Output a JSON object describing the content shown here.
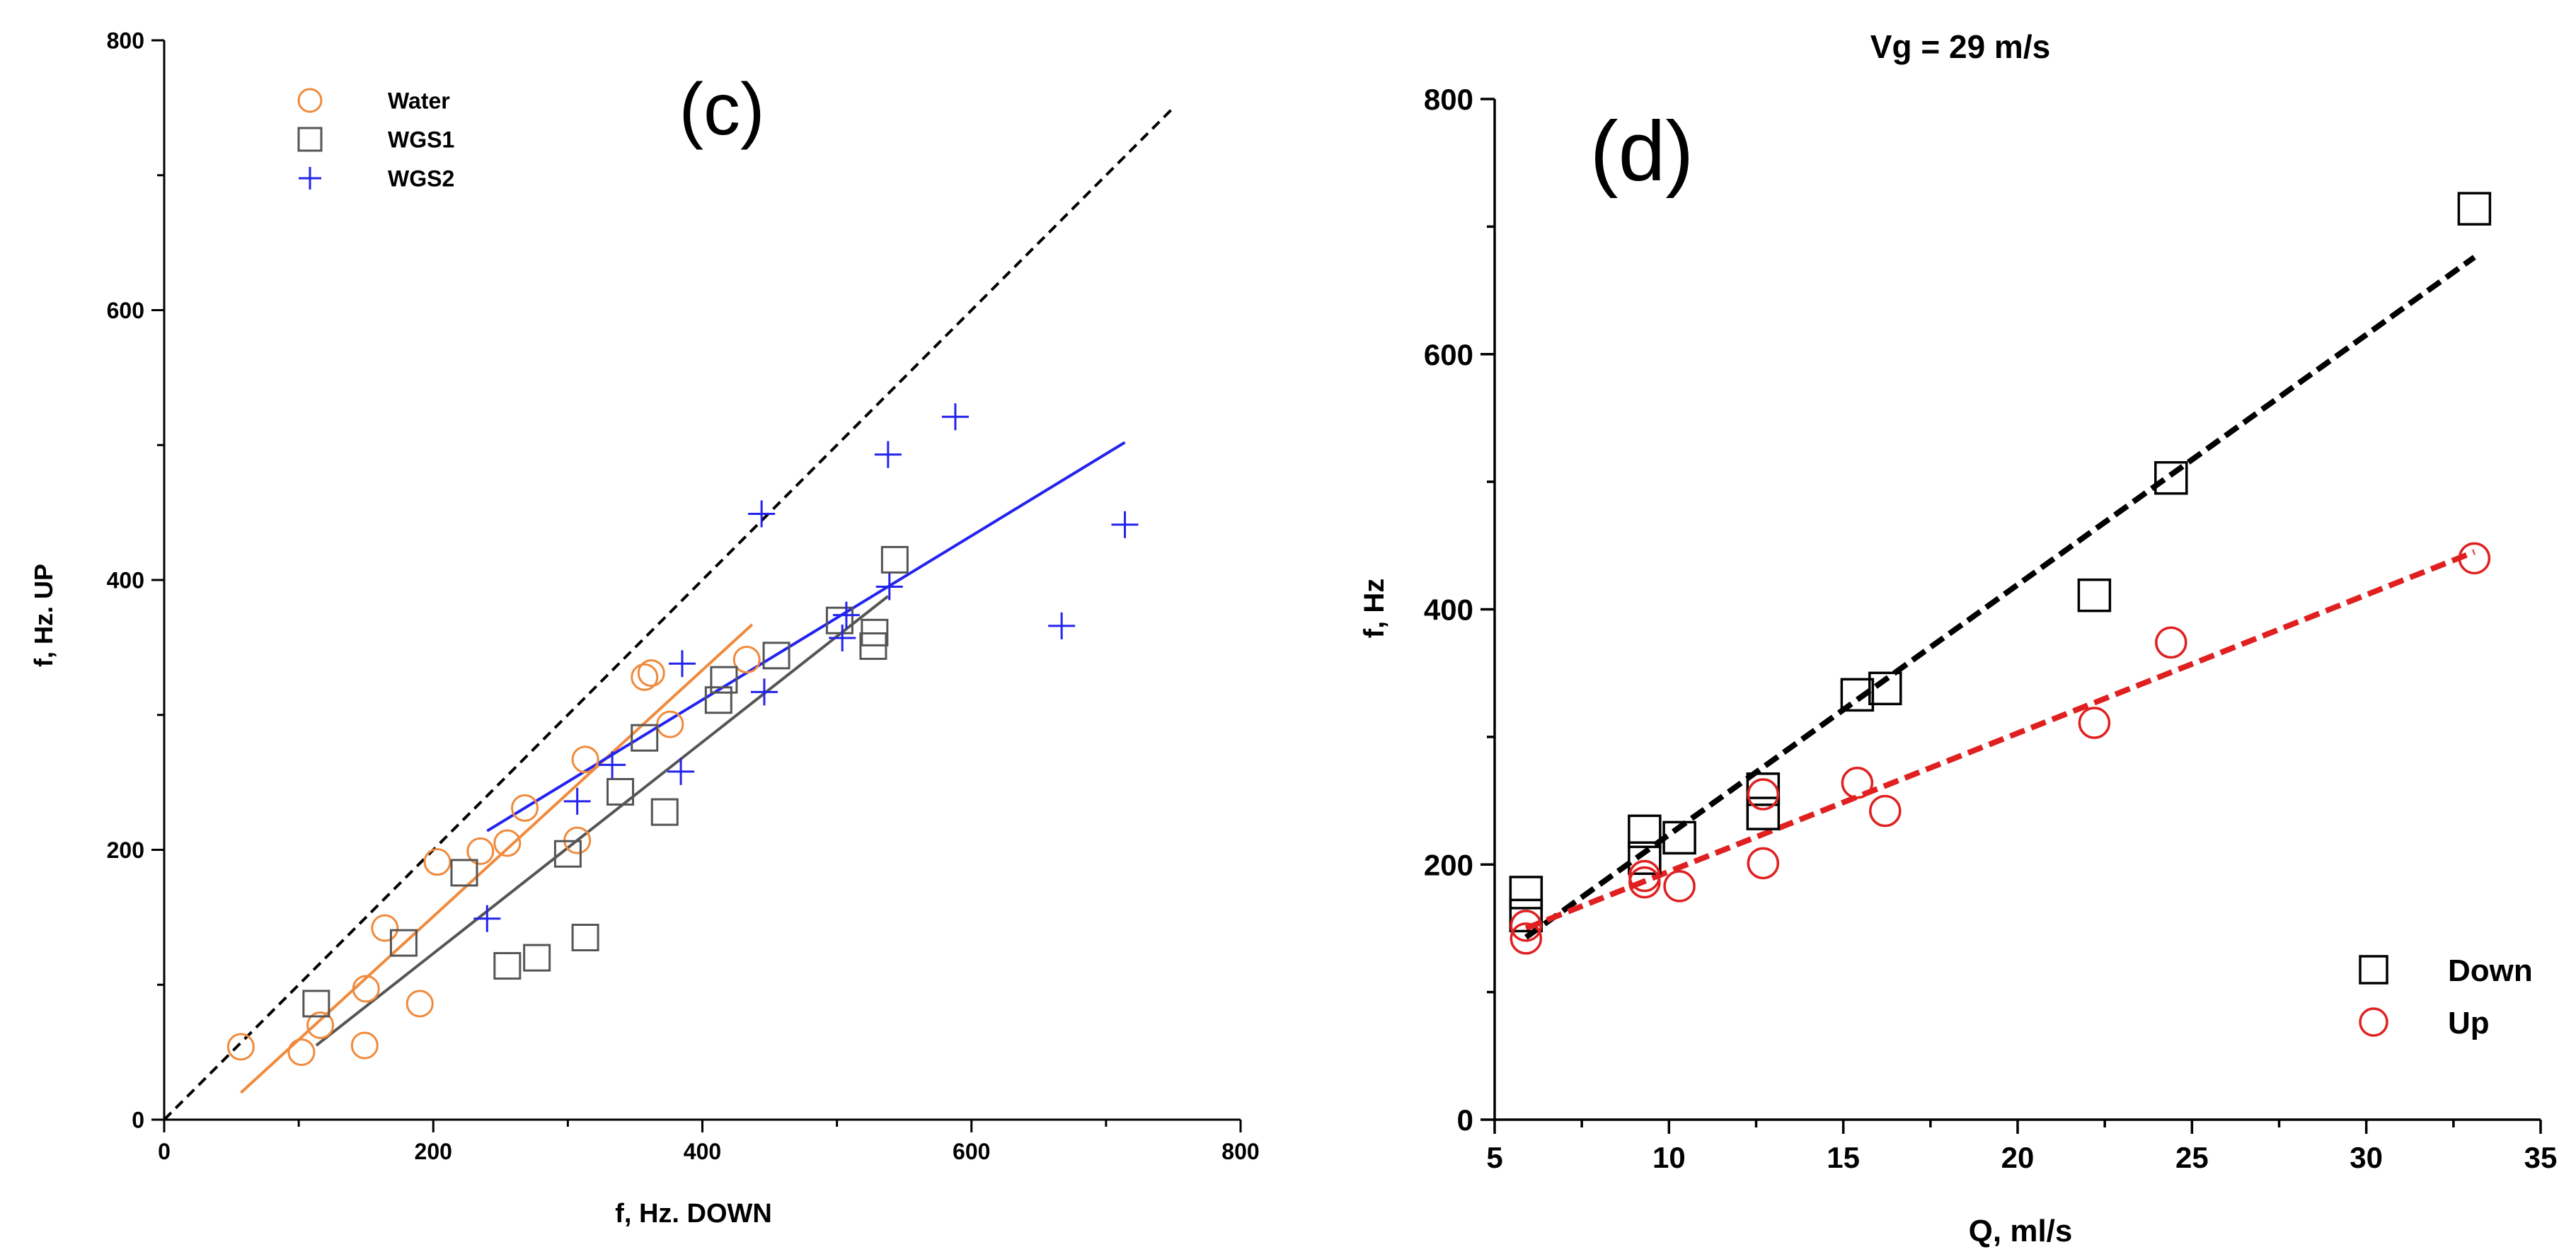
{
  "chart_data": [
    {
      "panel": "(c)",
      "type": "scatter",
      "title": "",
      "xlabel": "f, Hz. DOWN",
      "ylabel": "f, Hz. UP",
      "xlim": [
        0,
        800
      ],
      "ylim": [
        0,
        800
      ],
      "xticks": [
        0,
        200,
        400,
        600,
        800
      ],
      "yticks": [
        0,
        200,
        400,
        600,
        800
      ],
      "legend_position": "top-left",
      "series": [
        {
          "name": "Water",
          "marker": "circle",
          "color": "#f08a3c",
          "x": [
            57,
            102,
            116,
            149,
            150,
            164,
            190,
            203,
            235,
            255,
            268,
            307,
            313,
            357,
            362,
            376,
            433
          ],
          "y": [
            54,
            50,
            70,
            55,
            97,
            142,
            86,
            191,
            199,
            205,
            231,
            207,
            267,
            328,
            331,
            293,
            341
          ],
          "fit": {
            "x": [
              57,
              437
            ],
            "y": [
              20,
              367
            ]
          }
        },
        {
          "name": "WGS1",
          "marker": "square",
          "color": "#555555",
          "x": [
            113,
            178,
            223,
            255,
            277,
            300,
            313,
            339,
            357,
            372,
            412,
            416,
            455,
            502,
            527,
            528,
            543
          ],
          "y": [
            86,
            131,
            183,
            114,
            120,
            197,
            135,
            243,
            283,
            228,
            311,
            326,
            344,
            370,
            351,
            361,
            415
          ],
          "fit": {
            "x": [
              113,
              538
            ],
            "y": [
              55,
              388
            ]
          }
        },
        {
          "name": "WGS2",
          "marker": "plus",
          "color": "#2323ee",
          "x": [
            240,
            307,
            333,
            384,
            385,
            444,
            446,
            504,
            507,
            538,
            539,
            588,
            667,
            714
          ],
          "y": [
            149,
            236,
            263,
            258,
            338,
            449,
            317,
            357,
            374,
            493,
            395,
            521,
            366,
            441
          ],
          "fit": {
            "x": [
              240,
              714
            ],
            "y": [
              214,
              502
            ]
          }
        }
      ],
      "reference_line": {
        "label": "y = x",
        "style": "dashed",
        "x": [
          0,
          750
        ],
        "y": [
          0,
          750
        ]
      }
    },
    {
      "panel": "(d)",
      "type": "scatter",
      "title": "Vg = 29 m/s",
      "xlabel": "Q, ml/s",
      "ylabel": "f, Hz",
      "xlim": [
        5,
        35
      ],
      "ylim": [
        0,
        800
      ],
      "xticks": [
        5,
        10,
        15,
        20,
        25,
        30,
        35
      ],
      "yticks": [
        0,
        200,
        400,
        600,
        800
      ],
      "legend_position": "bottom-right",
      "series": [
        {
          "name": "Down",
          "marker": "square",
          "color": "#000000",
          "x": [
            5.9,
            5.9,
            9.3,
            9.3,
            10.3,
            12.7,
            12.7,
            15.4,
            16.2,
            22.2,
            24.4,
            33.1
          ],
          "y": [
            178,
            160,
            226,
            205,
            221,
            259,
            240,
            333,
            338,
            411,
            503,
            714
          ],
          "fit": {
            "x": [
              5.9,
              33.1
            ],
            "y": [
              143,
              676
            ]
          }
        },
        {
          "name": "Up",
          "marker": "circle",
          "color": "#e02020",
          "x": [
            5.9,
            5.9,
            9.3,
            9.3,
            10.3,
            12.7,
            12.7,
            15.4,
            16.2,
            22.2,
            24.4,
            33.1
          ],
          "y": [
            152,
            142,
            191,
            186,
            183,
            255,
            201,
            264,
            242,
            311,
            374,
            440
          ],
          "fit": {
            "x": [
              5.9,
              33.1
            ],
            "y": [
              150,
              445
            ]
          }
        }
      ]
    }
  ]
}
